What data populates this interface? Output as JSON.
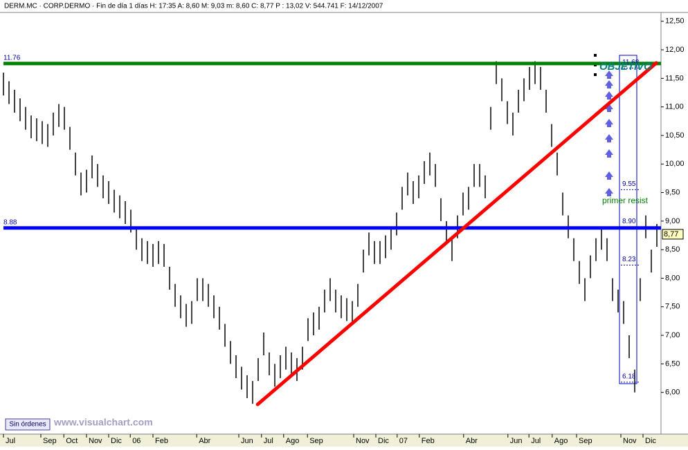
{
  "chart_data": {
    "type": "ohlc",
    "header": "DERM.MC · CORP.DERMO · Fin de día 1 días  H: 17:35  A: 8,60  M: 9,03  m: 8,60  C: 8,77  P : 13,02  V: 544.741  F: 14/12/2007",
    "color": "#000000",
    "ylim": [
      5.27,
      12.63
    ],
    "yticks": [
      {
        "value": 6.0,
        "label": "6,00"
      },
      {
        "value": 6.5,
        "label": "6,50"
      },
      {
        "value": 7.0,
        "label": "7,00"
      },
      {
        "value": 7.5,
        "label": "7,50"
      },
      {
        "value": 8.0,
        "label": "8,00"
      },
      {
        "value": 8.5,
        "label": "8,50"
      },
      {
        "value": 9.0,
        "label": "9,00"
      },
      {
        "value": 9.5,
        "label": "9,50"
      },
      {
        "value": 10.0,
        "label": "10,00"
      },
      {
        "value": 10.5,
        "label": "10,50"
      },
      {
        "value": 11.0,
        "label": "11,00"
      },
      {
        "value": 11.5,
        "label": "11,50"
      },
      {
        "value": 12.0,
        "label": "12,00"
      },
      {
        "value": 12.5,
        "label": "12,50"
      }
    ],
    "xlim": [
      0,
      118.75
    ],
    "xticks": [
      {
        "value": 0,
        "label": "Jul"
      },
      {
        "value": 6.75,
        "label": "Sep"
      },
      {
        "value": 10.9,
        "label": "Oct"
      },
      {
        "value": 15,
        "label": "Nov"
      },
      {
        "value": 19,
        "label": "Dic"
      },
      {
        "value": 22.9,
        "label": "06"
      },
      {
        "value": 27,
        "label": "Feb"
      },
      {
        "value": 34.9,
        "label": "Abr"
      },
      {
        "value": 42.5,
        "label": "Jun"
      },
      {
        "value": 46.6,
        "label": "Jul"
      },
      {
        "value": 50.6,
        "label": "Ago"
      },
      {
        "value": 54.9,
        "label": "Sep"
      },
      {
        "value": 63.25,
        "label": "Nov"
      },
      {
        "value": 67.25,
        "label": "Dic"
      },
      {
        "value": 71.1,
        "label": "07"
      },
      {
        "value": 75.1,
        "label": "Feb"
      },
      {
        "value": 83.1,
        "label": "Abr"
      },
      {
        "value": 91.1,
        "label": "Jun"
      },
      {
        "value": 94.9,
        "label": "Jul"
      },
      {
        "value": 99.1,
        "label": "Ago"
      },
      {
        "value": 103.5,
        "label": "Sep"
      },
      {
        "value": 111.5,
        "label": "Nov"
      },
      {
        "value": 115.5,
        "label": "Dic"
      }
    ],
    "high": [
      11.6,
      11.45,
      11.3,
      11.15,
      11.0,
      10.85,
      10.8,
      10.75,
      10.7,
      10.9,
      11.05,
      11.0,
      10.65,
      10.2,
      9.85,
      9.9,
      10.15,
      10.0,
      9.8,
      9.7,
      9.55,
      9.45,
      9.35,
      9.2,
      8.9,
      8.7,
      8.65,
      8.6,
      8.65,
      8.6,
      8.2,
      7.9,
      7.7,
      7.55,
      7.6,
      8.0,
      8.0,
      7.9,
      7.7,
      7.5,
      7.2,
      6.9,
      6.65,
      6.45,
      6.3,
      6.2,
      6.6,
      7.05,
      6.7,
      6.5,
      6.65,
      6.8,
      6.7,
      6.6,
      6.8,
      7.3,
      7.4,
      7.5,
      7.8,
      8.0,
      7.8,
      7.7,
      7.65,
      7.6,
      7.9,
      8.5,
      8.8,
      8.65,
      8.65,
      8.75,
      8.9,
      9.15,
      9.6,
      9.85,
      9.7,
      9.8,
      10.05,
      10.2,
      10.0,
      9.4,
      9.0,
      8.7,
      9.1,
      9.5,
      9.6,
      10.0,
      10.0,
      9.8,
      11.0,
      11.8,
      11.5,
      11.1,
      10.9,
      11.3,
      11.5,
      11.7,
      11.8,
      11.7,
      11.3,
      10.7,
      10.2,
      9.5,
      9.1,
      8.7,
      8.3,
      8.0,
      8.4,
      8.7,
      8.9,
      8.7,
      8.0,
      7.8,
      7.6,
      7.0,
      6.4,
      8.0,
      9.1,
      8.5,
      8.95
    ],
    "low": [
      11.2,
      11.05,
      10.9,
      10.75,
      10.6,
      10.45,
      10.4,
      10.35,
      10.3,
      10.5,
      10.65,
      10.6,
      10.25,
      9.8,
      9.45,
      9.5,
      9.75,
      9.6,
      9.4,
      9.3,
      9.15,
      9.05,
      8.95,
      8.8,
      8.5,
      8.3,
      8.25,
      8.2,
      8.25,
      8.2,
      7.8,
      7.5,
      7.3,
      7.15,
      7.2,
      7.6,
      7.6,
      7.5,
      7.3,
      7.1,
      6.8,
      6.5,
      6.25,
      6.05,
      5.9,
      5.8,
      6.2,
      6.65,
      6.3,
      6.1,
      6.25,
      6.4,
      6.3,
      6.2,
      6.4,
      6.9,
      7.0,
      7.1,
      7.4,
      7.6,
      7.4,
      7.3,
      7.25,
      7.2,
      7.5,
      8.1,
      8.4,
      8.25,
      8.25,
      8.35,
      8.5,
      8.75,
      9.2,
      9.45,
      9.3,
      9.4,
      9.65,
      9.8,
      9.6,
      9.0,
      8.6,
      8.3,
      8.7,
      9.1,
      9.2,
      9.6,
      9.6,
      9.4,
      10.6,
      11.4,
      11.1,
      10.7,
      10.5,
      10.9,
      11.1,
      11.3,
      11.4,
      11.3,
      10.9,
      10.3,
      9.8,
      9.1,
      8.7,
      8.3,
      7.9,
      7.6,
      8.0,
      8.3,
      8.5,
      8.3,
      7.6,
      7.4,
      7.2,
      6.6,
      6.0,
      7.6,
      8.7,
      8.1,
      8.55
    ],
    "hlines": [
      {
        "value": 11.76,
        "color": "#008000"
      },
      {
        "value": 8.88,
        "color": "#0000ff"
      }
    ],
    "trendline": {
      "x": [
        45.9,
        117.9
      ],
      "y": [
        5.79,
        11.77
      ],
      "color": "#ff0000"
    },
    "levels": [
      11.68,
      9.55,
      {
        "value": 8.9,
        "label": "8.90"
      },
      8.23,
      6.18
    ],
    "last": {
      "value": 8.77,
      "label": "8,77"
    },
    "annotations": [
      "OBJETIVO",
      "primer resist"
    ],
    "button": "Sin órdenes",
    "watermark": "www.visualchart.com"
  }
}
